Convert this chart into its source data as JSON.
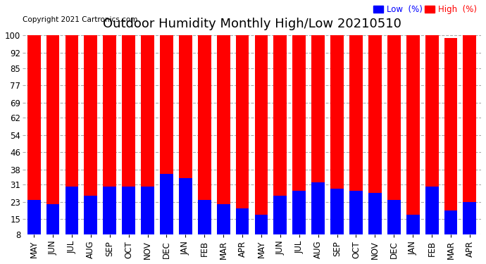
{
  "title": "Outdoor Humidity Monthly High/Low 20210510",
  "copyright": "Copyright 2021 Cartronics.com",
  "months": [
    "MAY",
    "JUN",
    "JUL",
    "AUG",
    "SEP",
    "OCT",
    "NOV",
    "DEC",
    "JAN",
    "FEB",
    "MAR",
    "APR",
    "MAY",
    "JUN",
    "JUL",
    "AUG",
    "SEP",
    "OCT",
    "NOV",
    "DEC",
    "JAN",
    "FEB",
    "MAR",
    "APR"
  ],
  "high_values": [
    100,
    100,
    100,
    100,
    100,
    100,
    100,
    100,
    100,
    100,
    100,
    100,
    100,
    100,
    100,
    100,
    100,
    100,
    100,
    100,
    100,
    100,
    99,
    100
  ],
  "low_values": [
    24,
    22,
    30,
    26,
    30,
    30,
    30,
    36,
    34,
    24,
    22,
    20,
    17,
    26,
    28,
    32,
    29,
    28,
    27,
    24,
    17,
    30,
    19,
    23
  ],
  "high_color": "#ff0000",
  "low_color": "#0000ff",
  "bg_color": "#ffffff",
  "yticks": [
    8,
    15,
    23,
    31,
    38,
    46,
    54,
    62,
    69,
    77,
    85,
    92,
    100
  ],
  "ymin": 8,
  "ymax": 100,
  "grid_color": "#aaaaaa",
  "bar_width": 0.7,
  "legend_low_label": "Low  (%)",
  "legend_high_label": "High  (%)",
  "title_fontsize": 13,
  "tick_fontsize": 8.5,
  "copyright_fontsize": 7.5
}
